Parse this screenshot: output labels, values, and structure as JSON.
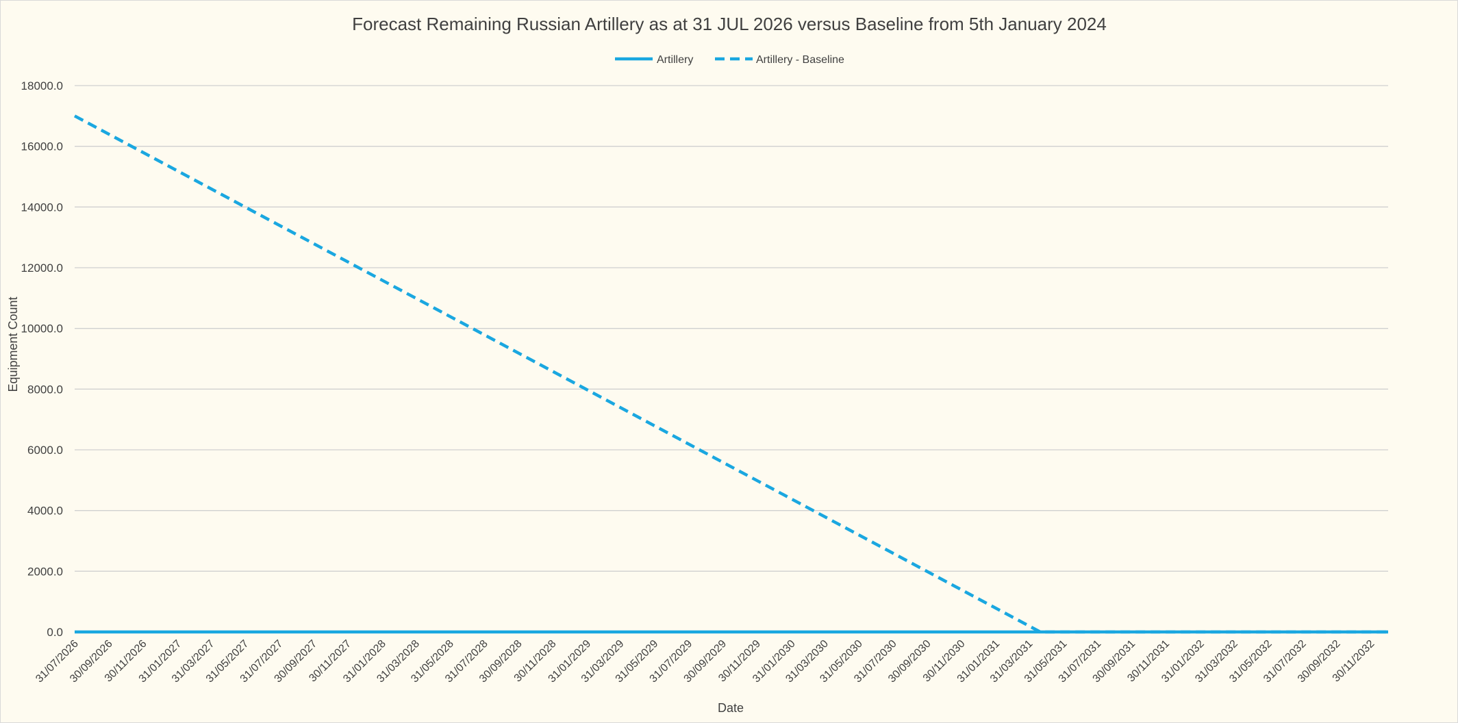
{
  "chart_data": {
    "type": "line",
    "title": "Forecast Remaining Russian Artillery as at 31 JUL 2026 versus Baseline from 5th January 2024",
    "xlabel": "Date",
    "ylabel": "Equipment Count",
    "ylim": [
      0,
      18000
    ],
    "y_ticks": [
      "0.0",
      "2000.0",
      "4000.0",
      "6000.0",
      "8000.0",
      "10000.0",
      "12000.0",
      "14000.0",
      "16000.0",
      "18000.0"
    ],
    "x_tick_labels": [
      "31/07/2026",
      "30/09/2026",
      "30/11/2026",
      "31/01/2027",
      "31/03/2027",
      "31/05/2027",
      "31/07/2027",
      "30/09/2027",
      "30/11/2027",
      "31/01/2028",
      "31/03/2028",
      "31/05/2028",
      "31/07/2028",
      "30/09/2028",
      "30/11/2028",
      "31/01/2029",
      "31/03/2029",
      "31/05/2029",
      "31/07/2029",
      "30/09/2029",
      "30/11/2029",
      "31/01/2030",
      "31/03/2030",
      "31/05/2030",
      "31/07/2030",
      "30/09/2030",
      "30/11/2030",
      "31/01/2031",
      "31/03/2031",
      "31/05/2031",
      "31/07/2031",
      "30/09/2031",
      "30/11/2031",
      "31/01/2032",
      "31/03/2032",
      "31/05/2032",
      "31/07/2032",
      "30/09/2032",
      "30/11/2032"
    ],
    "x_range": [
      "31/07/2026",
      "31/12/2032"
    ],
    "grid": true,
    "legend_position": "top",
    "series": [
      {
        "name": "Artillery",
        "style": "solid",
        "color": "#1aa7e0",
        "points": [
          {
            "x": "31/07/2026",
            "y": 0
          },
          {
            "x": "31/12/2032",
            "y": 0
          }
        ]
      },
      {
        "name": "Artillery - Baseline",
        "style": "dashed",
        "color": "#1aa7e0",
        "points": [
          {
            "x": "31/07/2026",
            "y": 17000
          },
          {
            "x": "20/04/2031",
            "y": 0
          },
          {
            "x": "31/12/2032",
            "y": 0
          }
        ]
      }
    ]
  }
}
